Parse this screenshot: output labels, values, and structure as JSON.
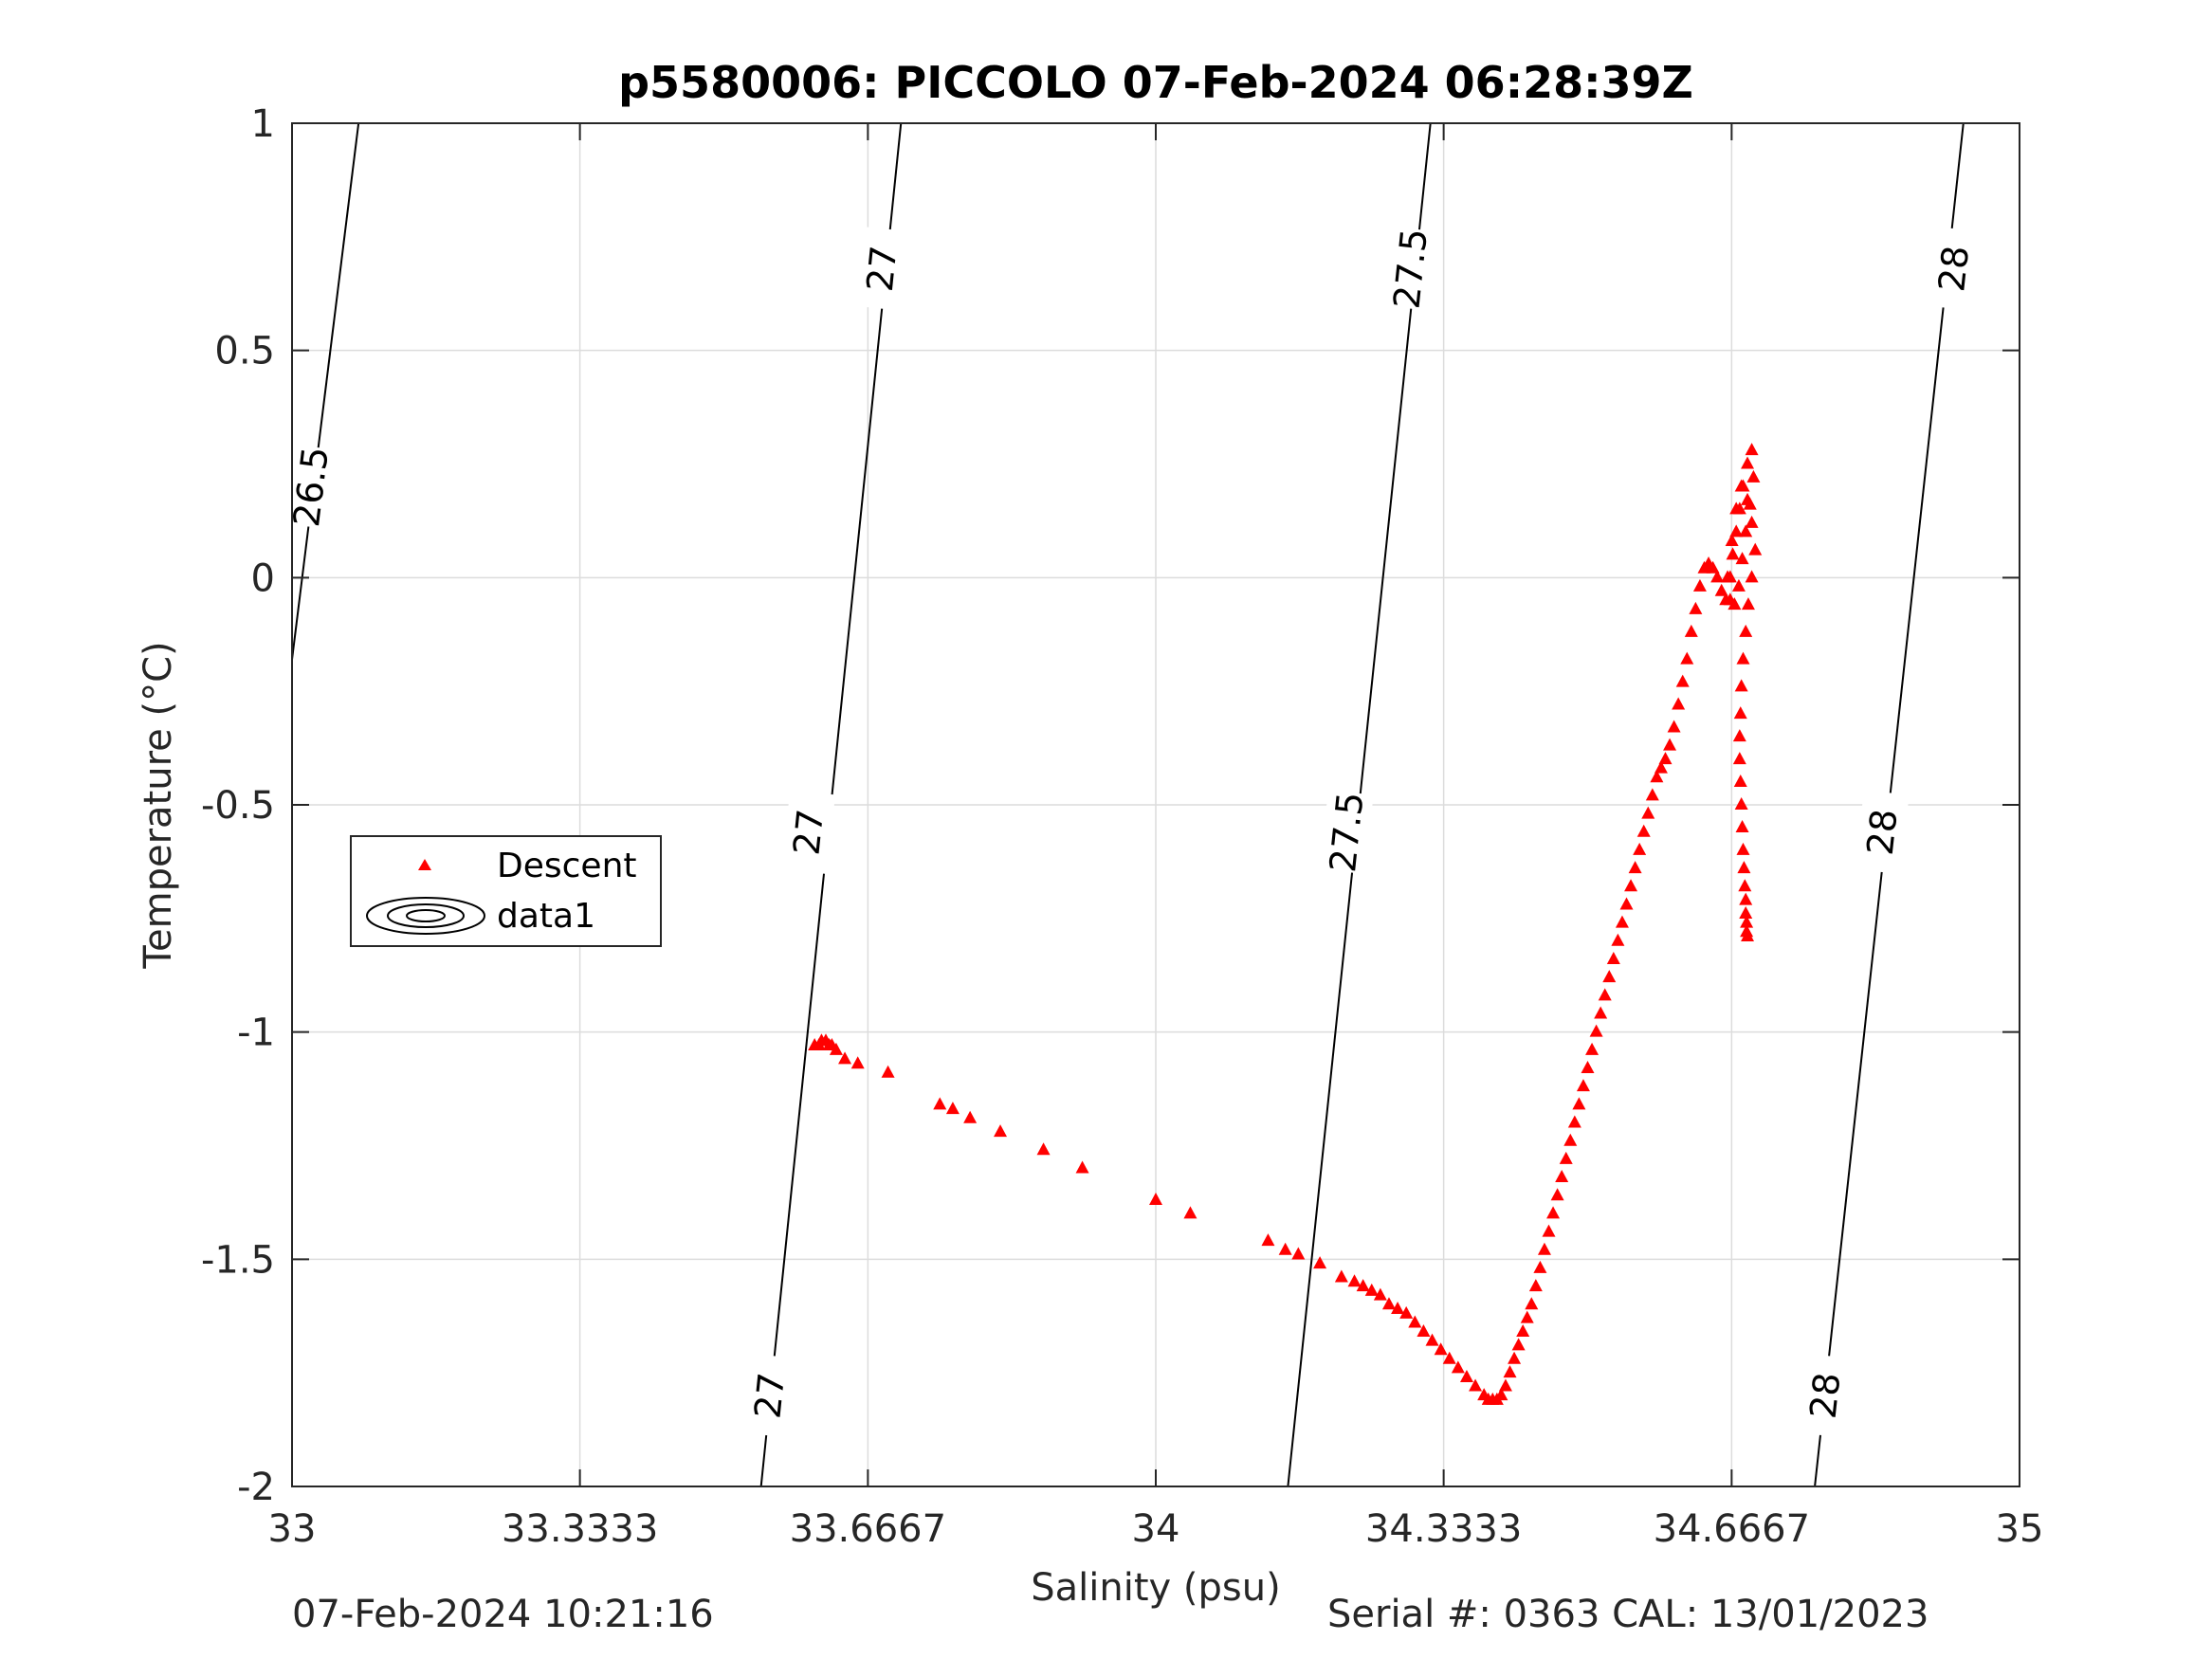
{
  "footer": {
    "timestamp": "07-Feb-2024 10:21:16",
    "serial_cal": "Serial #: 0363  CAL: 13/01/2023"
  },
  "chart_data": {
    "type": "scatter",
    "title": "p5580006: PICCOLO 07-Feb-2024 06:28:39Z",
    "xlabel": "Salinity (psu)",
    "ylabel": "Temperature (°C)",
    "xlim": [
      33,
      35
    ],
    "ylim": [
      -2,
      1
    ],
    "xticks": [
      33,
      33.3333,
      33.6667,
      34,
      34.3333,
      34.6667,
      35
    ],
    "xtick_labels": [
      "33",
      "33.3333",
      "33.6667",
      "34",
      "34.3333",
      "34.6667",
      "35"
    ],
    "yticks": [
      -2,
      -1.5,
      -1,
      -0.5,
      0,
      0.5,
      1
    ],
    "ytick_labels": [
      "-2",
      "-1.5",
      "-1",
      "-0.5",
      "0",
      "0.5",
      "1"
    ],
    "grid": true,
    "legend": {
      "placement": "middle-left",
      "entries": [
        {
          "label": "Descent",
          "marker": "triangle",
          "color": "#ff0000"
        },
        {
          "label": "data1",
          "marker": "contour",
          "color": "#000000"
        }
      ]
    },
    "contours": [
      {
        "level": "26.5",
        "points": [
          [
            33.0,
            -0.18
          ],
          [
            33.077,
            1.0
          ]
        ],
        "labels": [
          [
            33.022,
            0.2
          ]
        ]
      },
      {
        "level": "27",
        "points": [
          [
            33.543,
            -2.0
          ],
          [
            33.705,
            1.0
          ]
        ],
        "labels": [
          [
            33.553,
            -1.8
          ],
          [
            33.598,
            -0.56
          ],
          [
            33.683,
            0.68
          ]
        ]
      },
      {
        "level": "27.5",
        "points": [
          [
            34.153,
            -2.0
          ],
          [
            34.318,
            1.0
          ]
        ],
        "labels": [
          [
            34.221,
            -0.56
          ],
          [
            34.295,
            0.68
          ]
        ]
      },
      {
        "level": "28",
        "points": [
          [
            34.763,
            -2.0
          ],
          [
            34.935,
            1.0
          ]
        ],
        "labels": [
          [
            34.775,
            -1.8
          ],
          [
            34.841,
            -0.56
          ],
          [
            34.924,
            0.68
          ]
        ]
      }
    ],
    "series": [
      {
        "name": "Descent",
        "marker": "triangle",
        "color": "#ff0000",
        "x": [
          33.605,
          33.61,
          33.613,
          33.618,
          33.622,
          33.625,
          33.63,
          33.64,
          33.655,
          33.69,
          33.75,
          33.765,
          33.785,
          33.82,
          33.87,
          33.915,
          34.0,
          34.04,
          34.13,
          34.15,
          34.165,
          34.19,
          34.215,
          34.23,
          34.24,
          34.25,
          34.26,
          34.27,
          34.28,
          34.29,
          34.3,
          34.31,
          34.32,
          34.33,
          34.34,
          34.35,
          34.36,
          34.37,
          34.38,
          34.385,
          34.39,
          34.395,
          34.4,
          34.405,
          34.41,
          34.415,
          34.42,
          34.425,
          34.43,
          34.435,
          34.44,
          34.445,
          34.45,
          34.455,
          34.46,
          34.465,
          34.47,
          34.475,
          34.48,
          34.485,
          34.49,
          34.495,
          34.5,
          34.505,
          34.51,
          34.515,
          34.52,
          34.525,
          34.53,
          34.535,
          34.54,
          34.545,
          34.55,
          34.555,
          34.56,
          34.565,
          34.57,
          34.575,
          34.58,
          34.585,
          34.59,
          34.595,
          34.6,
          34.605,
          34.61,
          34.615,
          34.62,
          34.625,
          34.63,
          34.635,
          34.64,
          34.645,
          34.65,
          34.655,
          34.66,
          34.665,
          34.668,
          34.672,
          34.676,
          34.68,
          34.685,
          34.69,
          34.692,
          34.688,
          34.683,
          34.679,
          34.675,
          34.67,
          34.665,
          34.662,
          34.667,
          34.672,
          34.678,
          34.685,
          34.69,
          34.694,
          34.69,
          34.686,
          34.683,
          34.68,
          34.678,
          34.677,
          34.676,
          34.676,
          34.677,
          34.678,
          34.679,
          34.68,
          34.681,
          34.682,
          34.683,
          34.683,
          34.684,
          34.684,
          34.685
        ],
        "y": [
          -1.03,
          -1.03,
          -1.02,
          -1.02,
          -1.03,
          -1.03,
          -1.04,
          -1.06,
          -1.07,
          -1.09,
          -1.16,
          -1.17,
          -1.19,
          -1.22,
          -1.26,
          -1.3,
          -1.37,
          -1.4,
          -1.46,
          -1.48,
          -1.49,
          -1.51,
          -1.54,
          -1.55,
          -1.56,
          -1.57,
          -1.58,
          -1.6,
          -1.61,
          -1.62,
          -1.64,
          -1.66,
          -1.68,
          -1.7,
          -1.72,
          -1.74,
          -1.76,
          -1.78,
          -1.8,
          -1.81,
          -1.81,
          -1.81,
          -1.8,
          -1.78,
          -1.75,
          -1.72,
          -1.69,
          -1.66,
          -1.63,
          -1.6,
          -1.56,
          -1.52,
          -1.48,
          -1.44,
          -1.4,
          -1.36,
          -1.32,
          -1.28,
          -1.24,
          -1.2,
          -1.16,
          -1.12,
          -1.08,
          -1.04,
          -1.0,
          -0.96,
          -0.92,
          -0.88,
          -0.84,
          -0.8,
          -0.76,
          -0.72,
          -0.68,
          -0.64,
          -0.6,
          -0.56,
          -0.52,
          -0.48,
          -0.44,
          -0.42,
          -0.4,
          -0.37,
          -0.33,
          -0.28,
          -0.23,
          -0.18,
          -0.12,
          -0.07,
          -0.02,
          0.02,
          0.03,
          0.02,
          0.0,
          -0.03,
          -0.05,
          0.0,
          0.05,
          0.1,
          0.15,
          0.2,
          0.25,
          0.28,
          0.22,
          0.16,
          0.1,
          0.04,
          -0.02,
          -0.06,
          -0.05,
          0.0,
          0.08,
          0.15,
          0.2,
          0.17,
          0.12,
          0.06,
          0.0,
          -0.06,
          -0.12,
          -0.18,
          -0.24,
          -0.3,
          -0.35,
          -0.4,
          -0.45,
          -0.5,
          -0.55,
          -0.6,
          -0.64,
          -0.68,
          -0.71,
          -0.74,
          -0.76,
          -0.78,
          -0.79
        ]
      }
    ]
  }
}
